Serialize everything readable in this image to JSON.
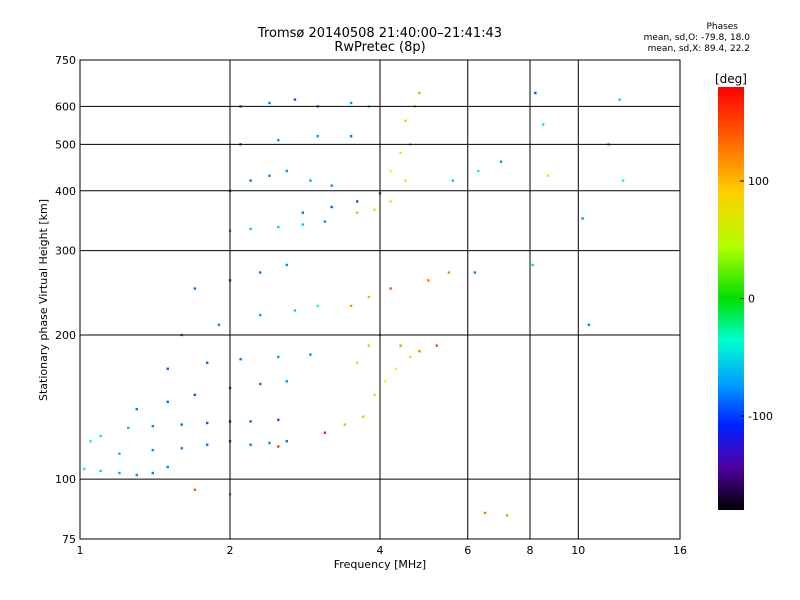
{
  "header": {
    "title": "Tromsø 20140508 21:40:00–21:41:43",
    "subtitle": "RwPretec (8p)"
  },
  "stats": {
    "heading": "Phases",
    "line1": "mean, sd,O: -79.8, 18.0",
    "line2": "mean, sd,X:  89.4, 22.2"
  },
  "colorbar": {
    "unit_label": "[deg]",
    "ticks": [
      {
        "value": 100,
        "label": "100"
      },
      {
        "value": 0,
        "label": "0"
      },
      {
        "value": -100,
        "label": "-100"
      }
    ],
    "range": [
      -180,
      180
    ]
  },
  "chart_data": {
    "type": "scatter",
    "xlabel": "Frequency [MHz]",
    "ylabel": "Stationary phase Virtual Height [km]",
    "x_scale": "log",
    "y_scale": "log",
    "xlim": [
      1,
      16
    ],
    "ylim": [
      75,
      750
    ],
    "x_ticks": [
      {
        "value": 1,
        "label": "1"
      },
      {
        "value": 2,
        "label": "2"
      },
      {
        "value": 4,
        "label": "4"
      },
      {
        "value": 6,
        "label": "6"
      },
      {
        "value": 8,
        "label": "8"
      },
      {
        "value": 10,
        "label": "10"
      },
      {
        "value": 16,
        "label": "16"
      }
    ],
    "y_ticks": [
      {
        "value": 75,
        "label": "75"
      },
      {
        "value": 100,
        "label": "100"
      },
      {
        "value": 200,
        "label": "200"
      },
      {
        "value": 300,
        "label": "300"
      },
      {
        "value": 400,
        "label": "400"
      },
      {
        "value": 500,
        "label": "500"
      },
      {
        "value": 600,
        "label": "600"
      },
      {
        "value": 750,
        "label": "750"
      }
    ],
    "grid": true,
    "color_by": "phase_deg",
    "series": [
      {
        "points": [
          [
            1.02,
            105,
            -60
          ],
          [
            1.1,
            104,
            -70
          ],
          [
            1.2,
            103,
            -85
          ],
          [
            1.3,
            102,
            -95
          ],
          [
            1.4,
            103,
            -100
          ],
          [
            1.5,
            106,
            -100
          ],
          [
            1.05,
            120,
            -60
          ],
          [
            1.1,
            123,
            -65
          ],
          [
            1.25,
            128,
            -80
          ],
          [
            1.4,
            129,
            -95
          ],
          [
            1.6,
            130,
            -105
          ],
          [
            1.8,
            131,
            -110
          ],
          [
            2.0,
            132,
            -110
          ],
          [
            2.2,
            132,
            -105
          ],
          [
            2.5,
            133,
            -110
          ],
          [
            2.0,
            120,
            -105
          ],
          [
            1.8,
            118,
            -100
          ],
          [
            1.6,
            116,
            -95
          ],
          [
            1.4,
            115,
            -90
          ],
          [
            1.2,
            113,
            -80
          ],
          [
            2.2,
            118,
            -100
          ],
          [
            2.4,
            119,
            -95
          ],
          [
            2.6,
            120,
            -100
          ],
          [
            1.3,
            140,
            -100
          ],
          [
            1.5,
            145,
            -105
          ],
          [
            1.7,
            150,
            -110
          ],
          [
            2.0,
            155,
            -105
          ],
          [
            2.3,
            158,
            -100
          ],
          [
            2.6,
            160,
            -95
          ],
          [
            1.5,
            170,
            -110
          ],
          [
            1.8,
            175,
            -105
          ],
          [
            2.1,
            178,
            -100
          ],
          [
            2.5,
            180,
            -90
          ],
          [
            2.9,
            182,
            -95
          ],
          [
            1.6,
            200,
            -100
          ],
          [
            1.9,
            210,
            -95
          ],
          [
            2.3,
            220,
            -90
          ],
          [
            2.7,
            225,
            -75
          ],
          [
            3.0,
            230,
            -60
          ],
          [
            1.7,
            250,
            -105
          ],
          [
            2.0,
            260,
            -110
          ],
          [
            2.3,
            270,
            -100
          ],
          [
            2.6,
            280,
            -95
          ],
          [
            2.0,
            330,
            -80
          ],
          [
            2.2,
            333,
            -75
          ],
          [
            2.5,
            336,
            -70
          ],
          [
            2.8,
            340,
            -75
          ],
          [
            3.1,
            345,
            -95
          ],
          [
            2.8,
            360,
            -100
          ],
          [
            3.2,
            370,
            -105
          ],
          [
            3.6,
            380,
            -110
          ],
          [
            4.0,
            395,
            -100
          ],
          [
            2.0,
            400,
            -110
          ],
          [
            2.2,
            420,
            -100
          ],
          [
            2.4,
            430,
            -95
          ],
          [
            2.6,
            440,
            -90
          ],
          [
            2.9,
            420,
            -85
          ],
          [
            3.2,
            410,
            -95
          ],
          [
            2.1,
            600,
            -105
          ],
          [
            2.4,
            610,
            -100
          ],
          [
            2.7,
            620,
            -110
          ],
          [
            3.0,
            600,
            -105
          ],
          [
            3.5,
            610,
            -90
          ],
          [
            3.8,
            600,
            -70
          ],
          [
            2.1,
            500,
            -100
          ],
          [
            2.5,
            510,
            -95
          ],
          [
            3.0,
            520,
            -90
          ],
          [
            3.5,
            520,
            -100
          ],
          [
            3.6,
            360,
            70
          ],
          [
            3.9,
            365,
            80
          ],
          [
            4.2,
            380,
            85
          ],
          [
            4.5,
            420,
            80
          ],
          [
            4.6,
            500,
            60
          ],
          [
            4.7,
            600,
            45
          ],
          [
            4.8,
            640,
            55
          ],
          [
            4.5,
            560,
            75
          ],
          [
            4.4,
            480,
            90
          ],
          [
            4.2,
            440,
            100
          ],
          [
            3.4,
            130,
            120
          ],
          [
            3.7,
            135,
            115
          ],
          [
            3.9,
            150,
            110
          ],
          [
            4.1,
            160,
            100
          ],
          [
            4.3,
            170,
            95
          ],
          [
            4.6,
            180,
            80
          ],
          [
            3.6,
            175,
            110
          ],
          [
            3.8,
            190,
            120
          ],
          [
            4.0,
            200,
            115
          ],
          [
            4.4,
            190,
            130
          ],
          [
            4.8,
            185,
            140
          ],
          [
            5.2,
            190,
            150
          ],
          [
            3.5,
            230,
            130
          ],
          [
            3.8,
            240,
            120
          ],
          [
            4.2,
            250,
            150
          ],
          [
            5.0,
            260,
            140
          ],
          [
            5.5,
            270,
            135
          ],
          [
            5.6,
            420,
            -80
          ],
          [
            6.2,
            270,
            -100
          ],
          [
            6.3,
            440,
            -60
          ],
          [
            7.0,
            460,
            -90
          ],
          [
            8.1,
            280,
            -70
          ],
          [
            8.2,
            640,
            -110
          ],
          [
            8.5,
            550,
            -50
          ],
          [
            8.7,
            430,
            110
          ],
          [
            10.2,
            350,
            -90
          ],
          [
            10.5,
            210,
            -95
          ],
          [
            12.1,
            620,
            -70
          ],
          [
            12.3,
            420,
            -60
          ],
          [
            11.5,
            500,
            -80
          ],
          [
            6.5,
            85,
            140
          ],
          [
            7.2,
            84,
            130
          ],
          [
            1.7,
            95,
            150
          ],
          [
            2.0,
            93,
            140
          ],
          [
            2.5,
            117,
            160
          ],
          [
            3.1,
            125,
            170
          ]
        ]
      }
    ]
  }
}
